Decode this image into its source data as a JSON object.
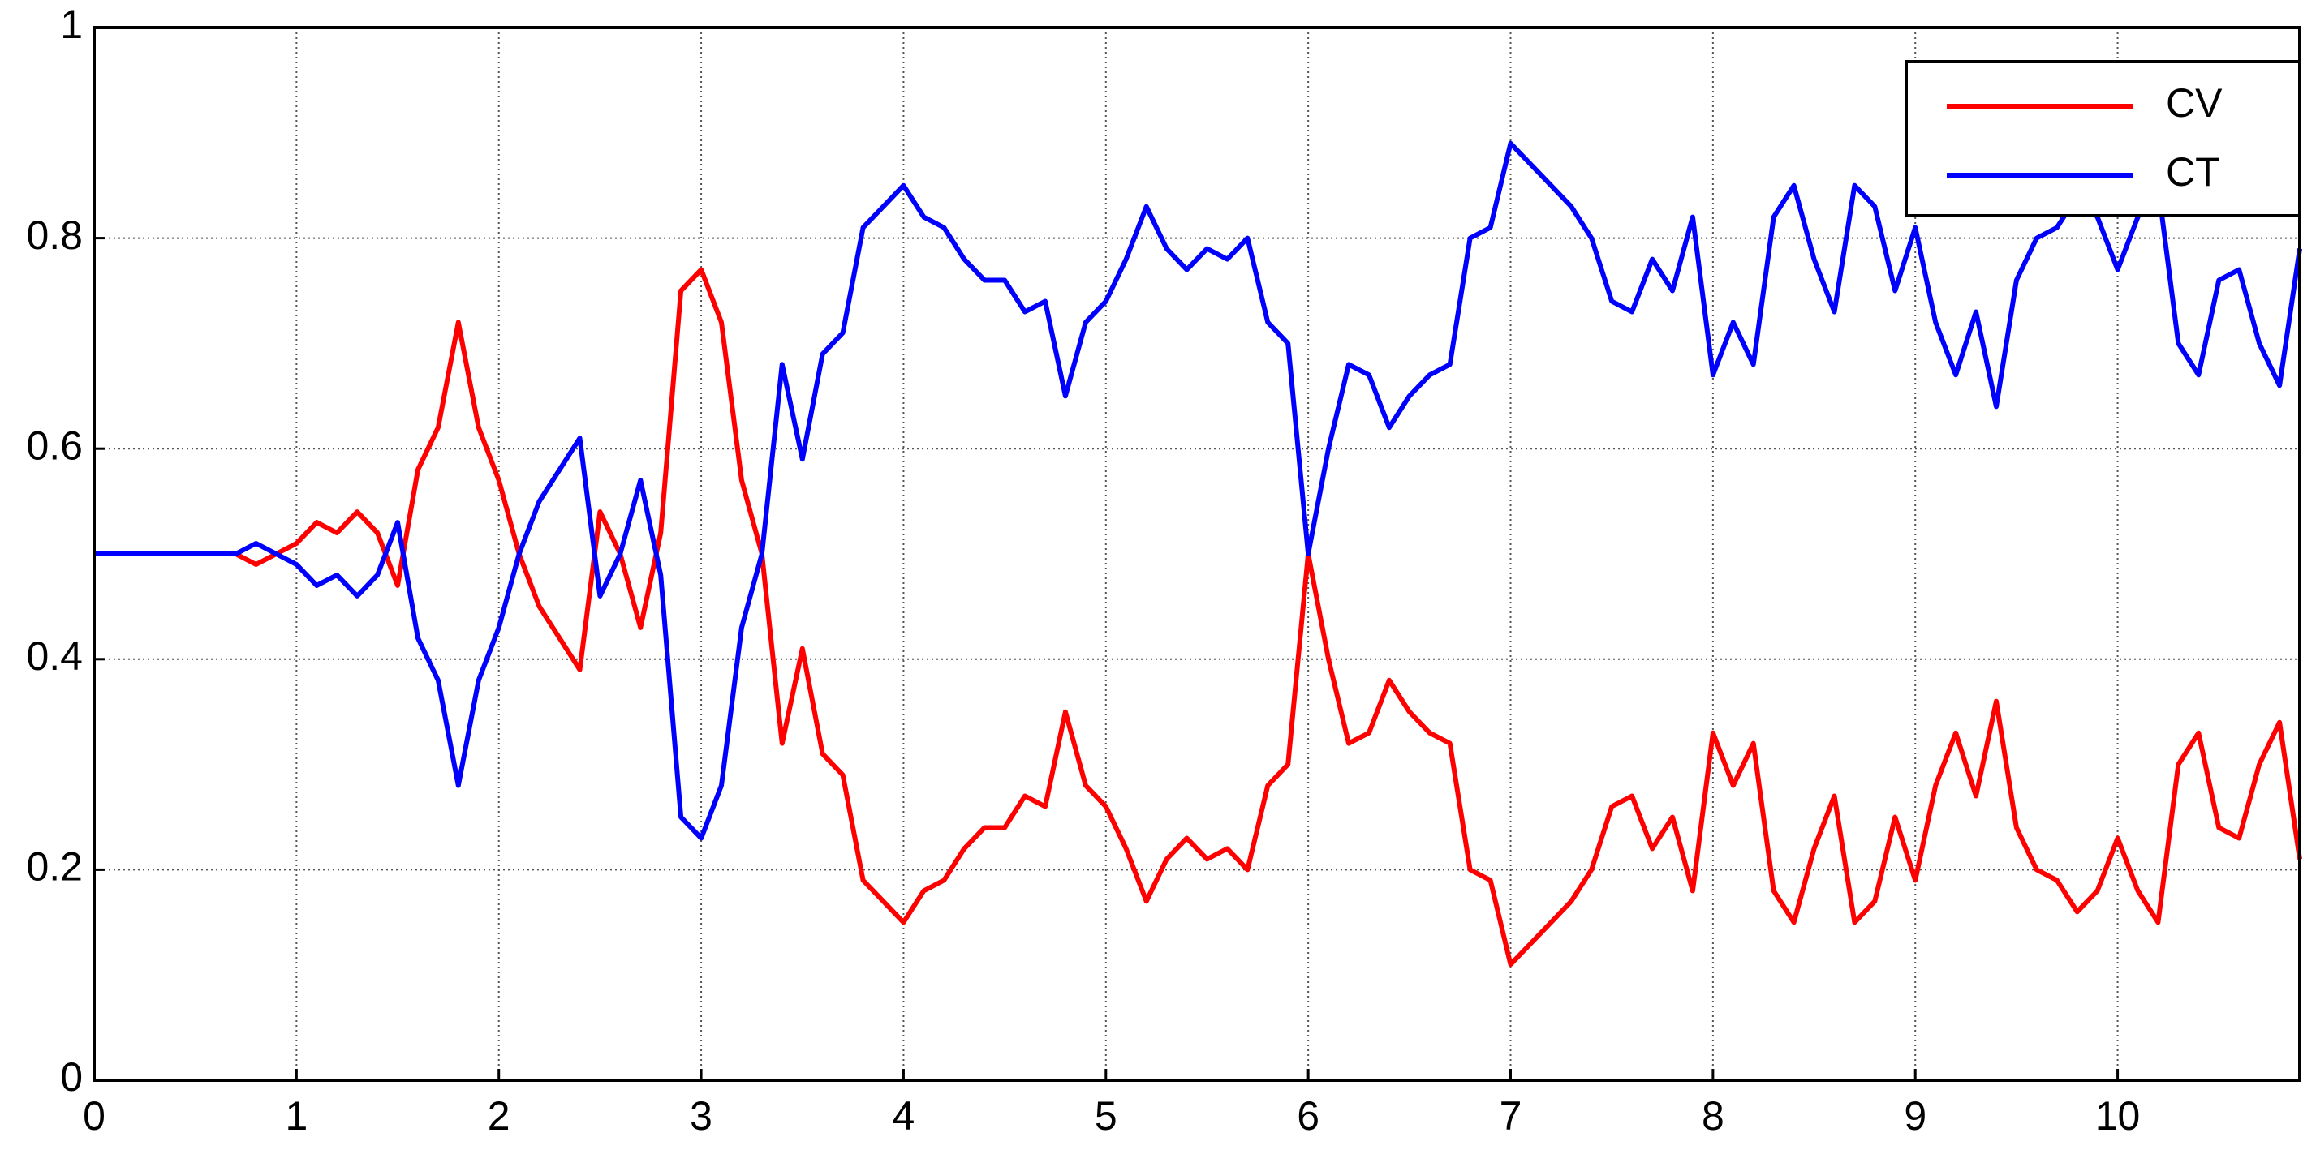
{
  "chart_data": {
    "type": "line",
    "x": [
      0,
      0.1,
      0.2,
      0.3,
      0.4,
      0.5,
      0.6,
      0.7,
      0.8,
      0.9,
      1,
      1.1,
      1.2,
      1.3,
      1.4,
      1.5,
      1.6,
      1.7,
      1.8,
      1.9,
      2,
      2.1,
      2.2,
      2.3,
      2.4,
      2.5,
      2.6,
      2.7,
      2.8,
      2.9,
      3,
      3.1,
      3.2,
      3.3,
      3.4,
      3.5,
      3.6,
      3.7,
      3.8,
      3.9,
      4,
      4.1,
      4.2,
      4.3,
      4.4,
      4.5,
      4.6,
      4.7,
      4.8,
      4.9,
      5,
      5.1,
      5.2,
      5.3,
      5.4,
      5.5,
      5.6,
      5.7,
      5.8,
      5.9,
      6,
      6.1,
      6.2,
      6.3,
      6.4,
      6.5,
      6.6,
      6.7,
      6.8,
      6.9,
      7,
      7.1,
      7.2,
      7.3,
      7.4,
      7.5,
      7.6,
      7.7,
      7.8,
      7.9,
      8,
      8.1,
      8.2,
      8.3,
      8.4,
      8.5,
      8.6,
      8.7,
      8.8,
      8.9,
      9,
      9.1,
      9.2,
      9.3,
      9.4,
      9.5,
      9.6,
      9.7,
      9.8,
      9.9,
      10,
      10.1,
      10.2,
      10.3,
      10.4,
      10.5,
      10.6,
      10.7,
      10.8,
      10.9
    ],
    "series": [
      {
        "name": "CV",
        "color": "#ff0000",
        "values": [
          0.5,
          0.5,
          0.5,
          0.5,
          0.5,
          0.5,
          0.5,
          0.5,
          0.49,
          0.5,
          0.51,
          0.53,
          0.52,
          0.54,
          0.52,
          0.47,
          0.58,
          0.62,
          0.72,
          0.62,
          0.57,
          0.5,
          0.45,
          0.42,
          0.39,
          0.54,
          0.5,
          0.43,
          0.52,
          0.75,
          0.77,
          0.72,
          0.57,
          0.5,
          0.32,
          0.41,
          0.31,
          0.29,
          0.19,
          0.17,
          0.15,
          0.18,
          0.19,
          0.22,
          0.24,
          0.24,
          0.27,
          0.26,
          0.35,
          0.28,
          0.26,
          0.22,
          0.17,
          0.21,
          0.23,
          0.21,
          0.22,
          0.2,
          0.28,
          0.3,
          0.5,
          0.4,
          0.32,
          0.33,
          0.38,
          0.35,
          0.33,
          0.32,
          0.2,
          0.19,
          0.11,
          0.13,
          0.15,
          0.17,
          0.2,
          0.26,
          0.27,
          0.22,
          0.25,
          0.18,
          0.33,
          0.28,
          0.32,
          0.18,
          0.15,
          0.22,
          0.27,
          0.15,
          0.17,
          0.25,
          0.19,
          0.28,
          0.33,
          0.27,
          0.36,
          0.24,
          0.2,
          0.19,
          0.16,
          0.18,
          0.23,
          0.18,
          0.15,
          0.3,
          0.33,
          0.24,
          0.23,
          0.3,
          0.34,
          0.21
        ]
      },
      {
        "name": "CT",
        "color": "#0000ff",
        "values": [
          0.5,
          0.5,
          0.5,
          0.5,
          0.5,
          0.5,
          0.5,
          0.5,
          0.51,
          0.5,
          0.49,
          0.47,
          0.48,
          0.46,
          0.48,
          0.53,
          0.42,
          0.38,
          0.28,
          0.38,
          0.43,
          0.5,
          0.55,
          0.58,
          0.61,
          0.46,
          0.5,
          0.57,
          0.48,
          0.25,
          0.23,
          0.28,
          0.43,
          0.5,
          0.68,
          0.59,
          0.69,
          0.71,
          0.81,
          0.83,
          0.85,
          0.82,
          0.81,
          0.78,
          0.76,
          0.76,
          0.73,
          0.74,
          0.65,
          0.72,
          0.74,
          0.78,
          0.83,
          0.79,
          0.77,
          0.79,
          0.78,
          0.8,
          0.72,
          0.7,
          0.5,
          0.6,
          0.68,
          0.67,
          0.62,
          0.65,
          0.67,
          0.68,
          0.8,
          0.81,
          0.89,
          0.87,
          0.85,
          0.83,
          0.8,
          0.74,
          0.73,
          0.78,
          0.75,
          0.82,
          0.67,
          0.72,
          0.68,
          0.82,
          0.85,
          0.78,
          0.73,
          0.85,
          0.83,
          0.75,
          0.81,
          0.72,
          0.67,
          0.73,
          0.64,
          0.76,
          0.8,
          0.81,
          0.84,
          0.82,
          0.77,
          0.82,
          0.85,
          0.7,
          0.67,
          0.76,
          0.77,
          0.7,
          0.66,
          0.79
        ]
      }
    ],
    "xlim": [
      0,
      10.9
    ],
    "ylim": [
      0,
      1
    ],
    "xticks": [
      0,
      1,
      2,
      3,
      4,
      5,
      6,
      7,
      8,
      9,
      10
    ],
    "yticks": [
      0,
      0.2,
      0.4,
      0.6,
      0.8,
      1
    ],
    "grid": true,
    "legend": "top-right"
  }
}
